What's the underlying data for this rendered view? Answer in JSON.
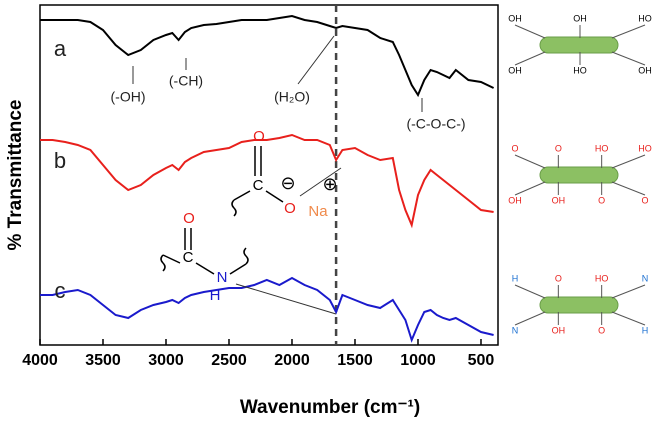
{
  "chart_data": {
    "type": "line",
    "x_label": "Wavenumber (cm⁻¹)",
    "y_label": "% Transmittance",
    "xlim": [
      4000,
      365
    ],
    "xticks": [
      4000,
      3500,
      3000,
      2500,
      2000,
      1500,
      1000,
      500
    ],
    "ylim": [
      0,
      340
    ],
    "dashed_line_x": 1650,
    "x": [
      4000,
      3900,
      3800,
      3700,
      3600,
      3500,
      3400,
      3300,
      3200,
      3100,
      3000,
      2950,
      2900,
      2850,
      2800,
      2700,
      2600,
      2500,
      2400,
      2300,
      2200,
      2100,
      2000,
      1900,
      1800,
      1700,
      1650,
      1600,
      1500,
      1400,
      1300,
      1200,
      1150,
      1100,
      1050,
      1000,
      950,
      900,
      850,
      800,
      750,
      700,
      600,
      500,
      400
    ],
    "series": [
      {
        "name": "a",
        "color": "#000000",
        "values": [
          325,
          325,
          325,
          325,
          323,
          315,
          300,
          290,
          295,
          305,
          310,
          312,
          305,
          313,
          317,
          320,
          321,
          323,
          325,
          325,
          325,
          327,
          329,
          325,
          323,
          319,
          317,
          319,
          317,
          315,
          307,
          303,
          290,
          275,
          260,
          250,
          265,
          275,
          273,
          270,
          267,
          275,
          265,
          263,
          257
        ]
      },
      {
        "name": "b",
        "color": "#e8201c",
        "values": [
          205,
          205,
          203,
          200,
          195,
          180,
          165,
          155,
          160,
          170,
          177,
          180,
          175,
          183,
          187,
          193,
          195,
          197,
          203,
          205,
          205,
          207,
          210,
          205,
          205,
          200,
          185,
          195,
          197,
          190,
          185,
          187,
          155,
          135,
          120,
          150,
          165,
          175,
          170,
          165,
          160,
          155,
          145,
          135,
          133
        ]
      },
      {
        "name": "c",
        "color": "#1a1acc",
        "values": [
          50,
          50,
          53,
          55,
          50,
          40,
          30,
          27,
          35,
          40,
          43,
          45,
          42,
          47,
          50,
          53,
          55,
          57,
          57,
          60,
          65,
          60,
          67,
          60,
          55,
          45,
          33,
          50,
          45,
          40,
          37,
          45,
          35,
          25,
          5,
          20,
          33,
          35,
          30,
          27,
          25,
          27,
          20,
          13,
          10
        ]
      }
    ],
    "annotations": [
      "(-OH)",
      "(-CH)",
      "(H₂O)",
      "(-C-O-C-)"
    ],
    "structures": [
      {
        "labels": [
          "O",
          "C",
          "O",
          "Na",
          "⊖",
          "⊕"
        ]
      },
      {
        "labels": [
          "O",
          "C",
          "N",
          "H"
        ]
      }
    ],
    "illustrations": [
      {
        "labels": [
          "OH",
          "OH",
          "OH",
          "HO",
          "HO",
          "OH"
        ]
      },
      {
        "labels": [
          "O",
          "OH",
          "O",
          "OH",
          "HO",
          "O",
          "HO",
          "O"
        ]
      },
      {
        "labels": [
          "H",
          "N",
          "O",
          "OH",
          "HO",
          "O",
          "N",
          "H"
        ]
      }
    ]
  }
}
